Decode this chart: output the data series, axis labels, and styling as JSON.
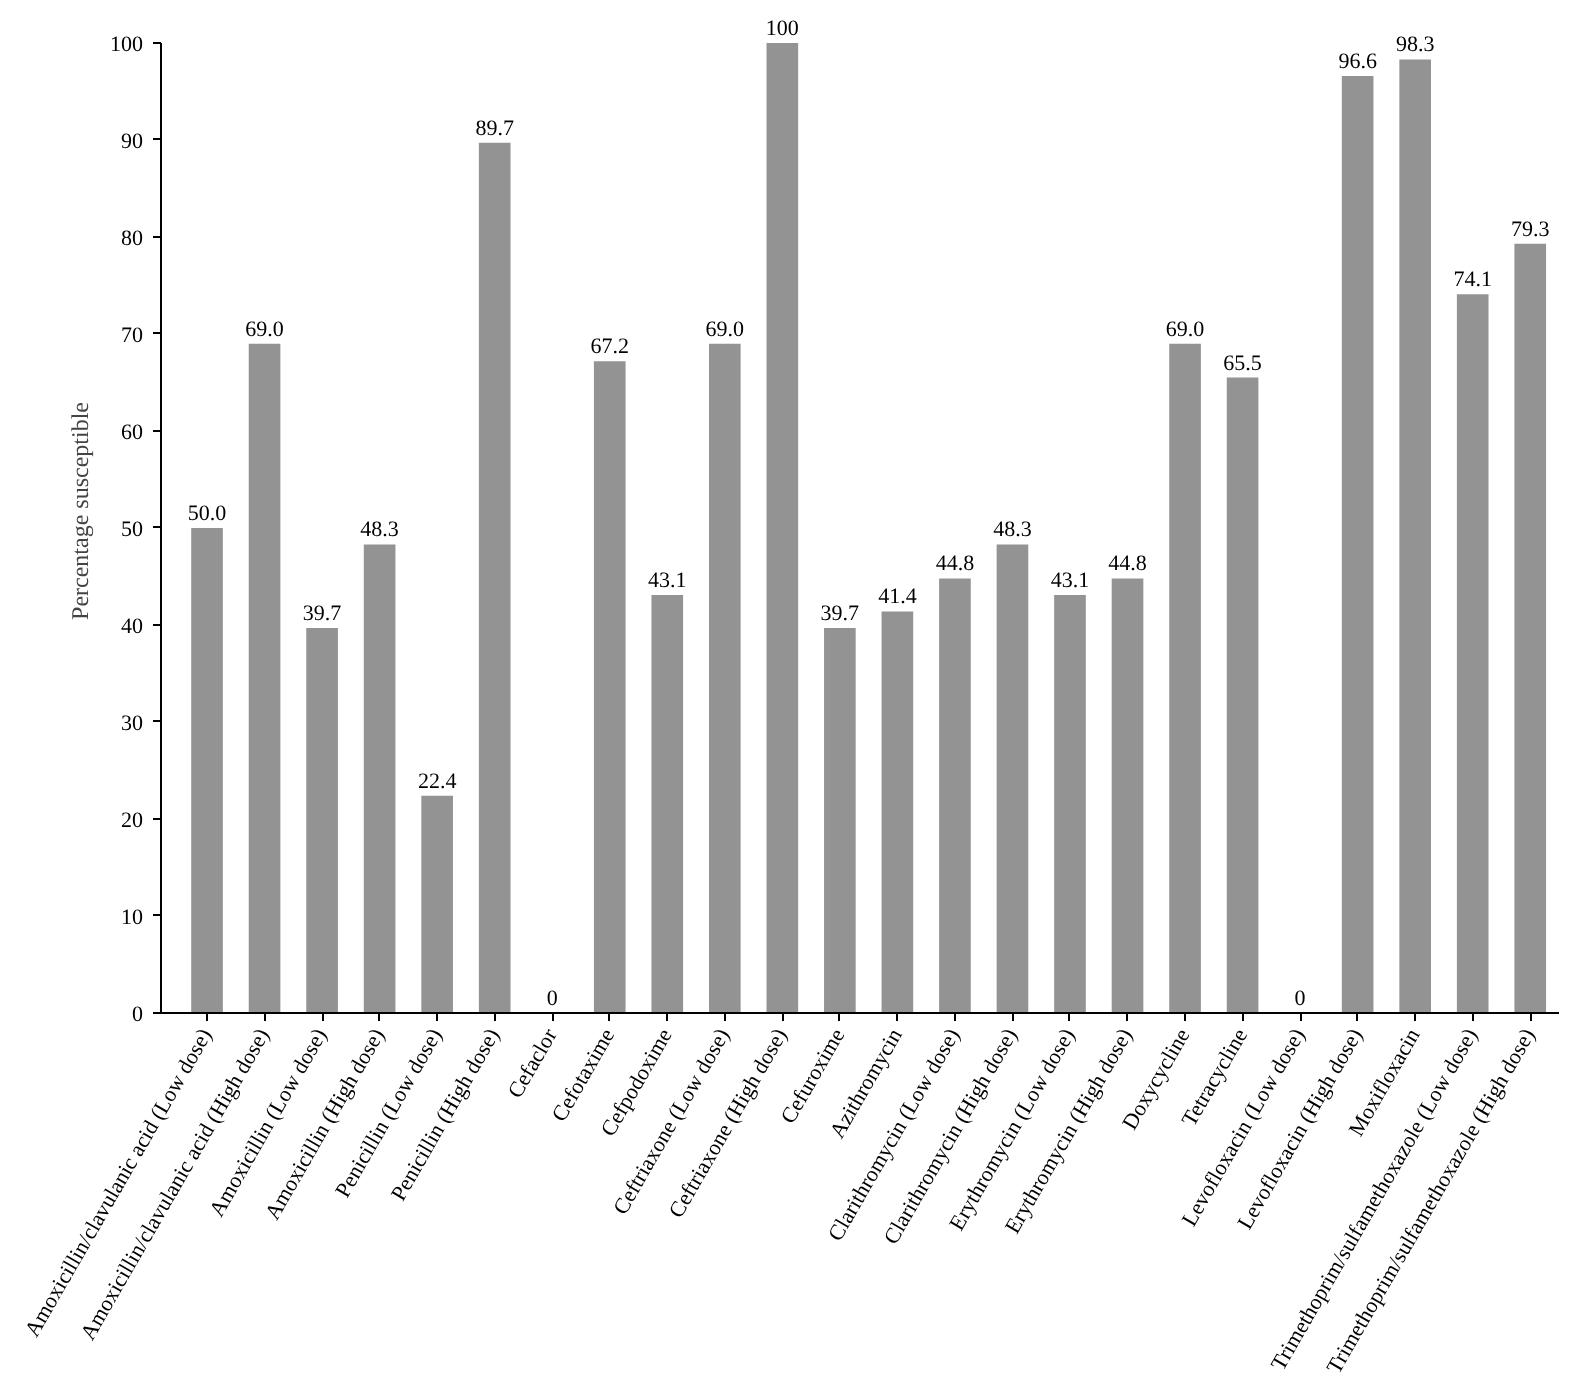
{
  "chart_data": {
    "type": "bar",
    "ylabel": "Percentage susceptible",
    "categories": [
      "Amoxicillin/clavulanic acid (Low dose)",
      "Amoxicillin/clavulanic acid (High dose)",
      "Amoxicillin (Low dose)",
      "Amoxicillin (High dose)",
      "Penicillin (Low dose)",
      "Penicillin (High dose)",
      "Cefaclor",
      "Cefotaxime",
      "Cefpodoxime",
      "Ceftriaxone (Low dose)",
      "Ceftriaxone (High dose)",
      "Cefuroxime",
      "Azithromycin",
      "Clarithromycin (Low dose)",
      "Clarithromycin (High dose)",
      "Erythromycin (Low dose)",
      "Erythromycin (High dose)",
      "Doxycycline",
      "Tetracycline",
      "Levofloxacin (Low dose)",
      "Levofloxacin (High dose)",
      "Moxifloxacin",
      "Trimethoprim/sulfamethoxazole (Low dose)",
      "Trimethoprim/sulfamethoxazole (High dose)"
    ],
    "values": [
      50.0,
      69.0,
      39.7,
      48.3,
      22.4,
      89.7,
      0,
      67.2,
      43.1,
      69.0,
      100,
      39.7,
      41.4,
      44.8,
      48.3,
      43.1,
      44.8,
      69.0,
      65.5,
      0,
      96.6,
      98.3,
      74.1,
      79.3
    ],
    "value_labels": [
      "50.0",
      "69.0",
      "39.7",
      "48.3",
      "22.4",
      "89.7",
      "0",
      "67.2",
      "43.1",
      "69.0",
      "100",
      "39.7",
      "41.4",
      "44.8",
      "48.3",
      "43.1",
      "44.8",
      "69.0",
      "65.5",
      "0",
      "96.6",
      "98.3",
      "74.1",
      "79.3"
    ],
    "color": "#939393",
    "ylim": [
      0,
      100
    ],
    "yticks": [
      0,
      10,
      20,
      30,
      40,
      50,
      60,
      70,
      80,
      90,
      100
    ],
    "grid": false
  }
}
